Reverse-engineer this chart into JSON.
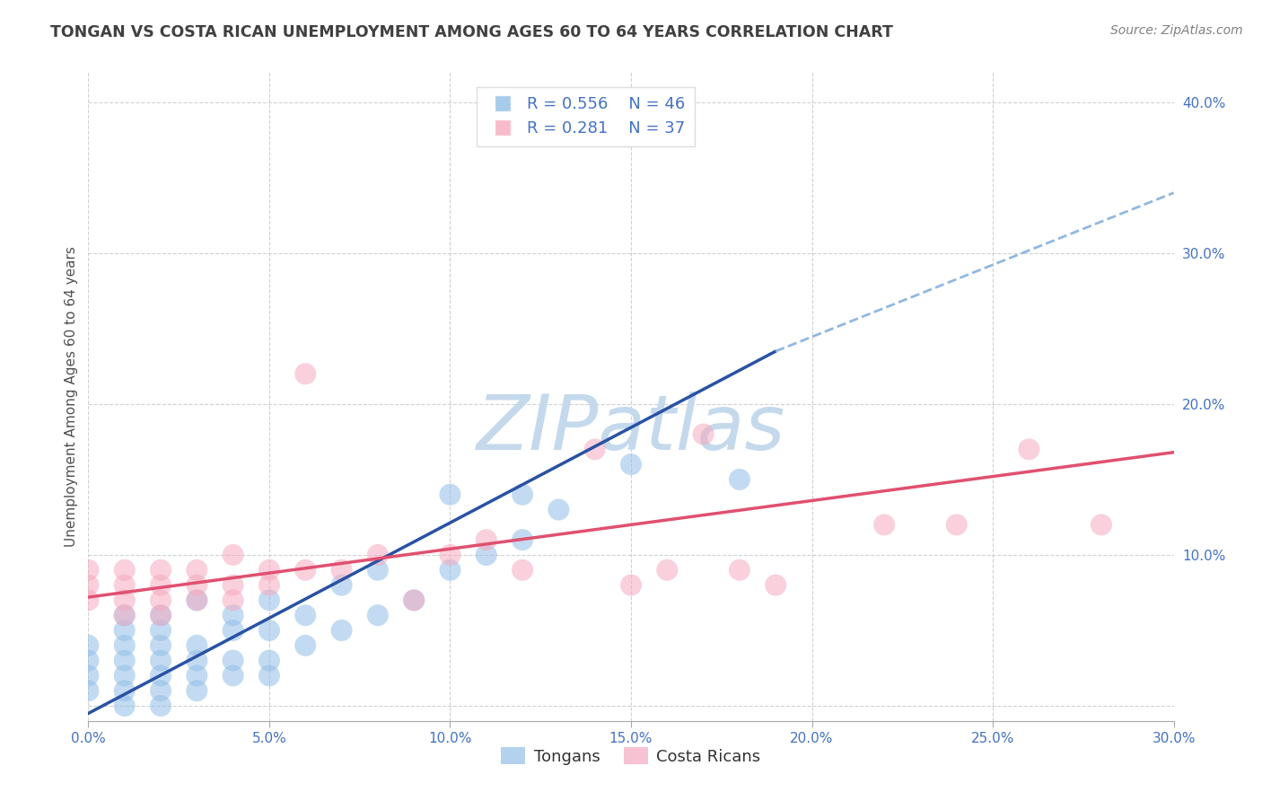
{
  "title": "TONGAN VS COSTA RICAN UNEMPLOYMENT AMONG AGES 60 TO 64 YEARS CORRELATION CHART",
  "source": "Source: ZipAtlas.com",
  "ylabel": "Unemployment Among Ages 60 to 64 years",
  "xlim": [
    0.0,
    0.3
  ],
  "ylim": [
    -0.01,
    0.42
  ],
  "xticks": [
    0.0,
    0.05,
    0.1,
    0.15,
    0.2,
    0.25,
    0.3
  ],
  "yticks": [
    0.0,
    0.1,
    0.2,
    0.3,
    0.4
  ],
  "blue_R": 0.556,
  "blue_N": 46,
  "pink_R": 0.281,
  "pink_N": 37,
  "blue_color": "#92bfe8",
  "pink_color": "#f5aabf",
  "blue_line_color": "#2952a3",
  "pink_line_color": "#e05070",
  "blue_dash_color": "#90b8e0",
  "watermark": "ZIPatlas",
  "watermark_color": "#c5d9ed",
  "blue_scatter_x": [
    0.0,
    0.0,
    0.0,
    0.0,
    0.01,
    0.01,
    0.01,
    0.01,
    0.01,
    0.01,
    0.01,
    0.02,
    0.02,
    0.02,
    0.02,
    0.02,
    0.02,
    0.02,
    0.03,
    0.03,
    0.03,
    0.03,
    0.03,
    0.04,
    0.04,
    0.04,
    0.04,
    0.05,
    0.05,
    0.05,
    0.05,
    0.06,
    0.06,
    0.07,
    0.07,
    0.08,
    0.08,
    0.09,
    0.1,
    0.1,
    0.11,
    0.12,
    0.12,
    0.13,
    0.15,
    0.18
  ],
  "blue_scatter_y": [
    0.01,
    0.02,
    0.03,
    0.04,
    0.0,
    0.01,
    0.02,
    0.03,
    0.04,
    0.05,
    0.06,
    0.0,
    0.01,
    0.02,
    0.03,
    0.04,
    0.05,
    0.06,
    0.01,
    0.02,
    0.03,
    0.04,
    0.07,
    0.02,
    0.03,
    0.05,
    0.06,
    0.02,
    0.03,
    0.05,
    0.07,
    0.04,
    0.06,
    0.05,
    0.08,
    0.06,
    0.09,
    0.07,
    0.09,
    0.14,
    0.1,
    0.11,
    0.14,
    0.13,
    0.16,
    0.15
  ],
  "pink_scatter_x": [
    0.0,
    0.0,
    0.0,
    0.01,
    0.01,
    0.01,
    0.01,
    0.02,
    0.02,
    0.02,
    0.02,
    0.03,
    0.03,
    0.03,
    0.04,
    0.04,
    0.04,
    0.05,
    0.05,
    0.06,
    0.06,
    0.07,
    0.08,
    0.09,
    0.1,
    0.11,
    0.12,
    0.14,
    0.15,
    0.16,
    0.17,
    0.18,
    0.19,
    0.22,
    0.24,
    0.26,
    0.28
  ],
  "pink_scatter_y": [
    0.07,
    0.08,
    0.09,
    0.06,
    0.07,
    0.08,
    0.09,
    0.06,
    0.07,
    0.08,
    0.09,
    0.07,
    0.08,
    0.09,
    0.07,
    0.08,
    0.1,
    0.08,
    0.09,
    0.09,
    0.22,
    0.09,
    0.1,
    0.07,
    0.1,
    0.11,
    0.09,
    0.17,
    0.08,
    0.09,
    0.18,
    0.09,
    0.08,
    0.12,
    0.12,
    0.17,
    0.12
  ],
  "blue_line_x0": 0.0,
  "blue_line_x_solid_end": 0.19,
  "blue_line_x1": 0.3,
  "blue_line_y0": -0.005,
  "blue_line_y_solid_end": 0.235,
  "blue_line_y1": 0.34,
  "pink_line_x0": 0.0,
  "pink_line_x1": 0.3,
  "pink_line_y0": 0.072,
  "pink_line_y1": 0.168,
  "background_color": "#ffffff",
  "grid_color": "#cccccc",
  "tick_color": "#4472c4",
  "title_color": "#404040",
  "ylabel_color": "#505050",
  "source_color": "#808080"
}
